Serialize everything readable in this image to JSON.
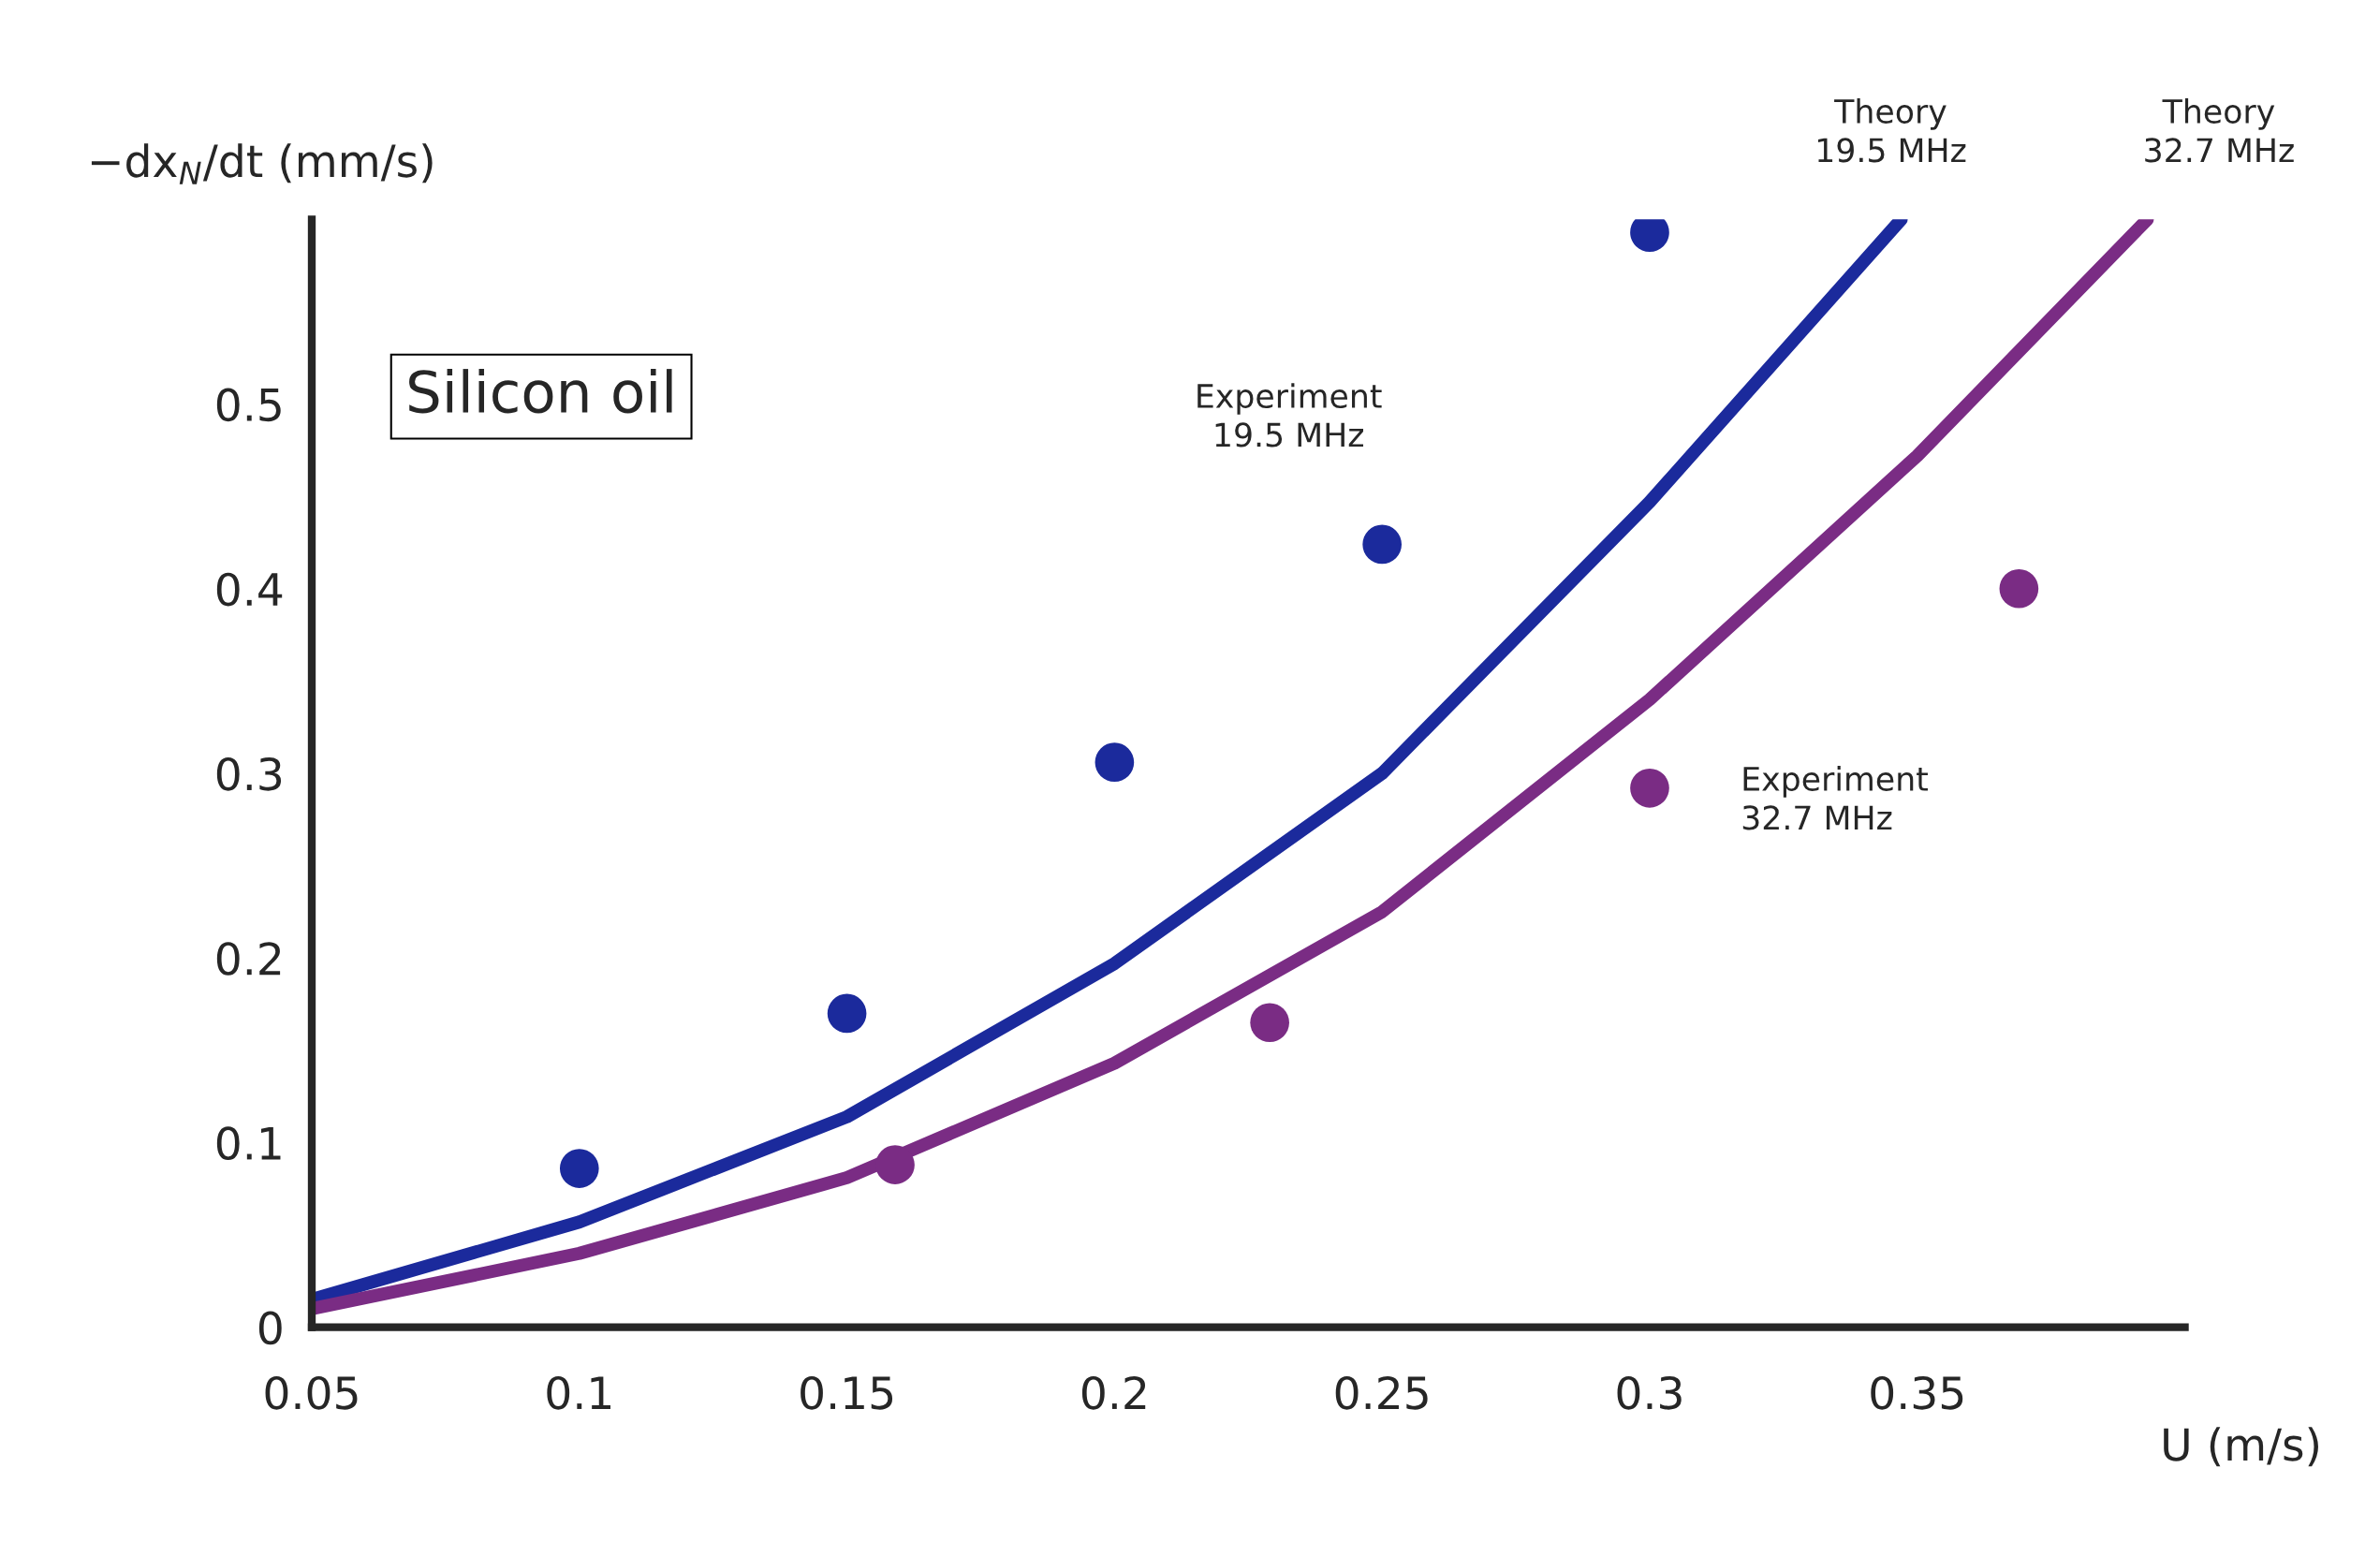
{
  "chart_data": {
    "type": "scatter",
    "xlabel": "U (m/s)",
    "ylabel": "−dx$_{N}$/dt (mm/s)",
    "xlim": [
      0.05,
      0.4
    ],
    "ylim": [
      0,
      0.6
    ],
    "xticks": [
      0.05,
      0.1,
      0.15,
      0.2,
      0.25,
      0.3,
      0.35
    ],
    "yticks": [
      0,
      0.1,
      0.2,
      0.3,
      0.4,
      0.5
    ],
    "grid": false,
    "legend": false,
    "annotations": [
      "Silicon oil"
    ],
    "series": [
      {
        "name": "Experiment 19.5 MHz",
        "marker": "circle",
        "color": "#1b2a9c",
        "x": [
          0.1,
          0.15,
          0.2,
          0.25,
          0.3
        ],
        "values": [
          0.086,
          0.17,
          0.306,
          0.424,
          0.593
        ]
      },
      {
        "name": "Experiment 32.7 MHz",
        "marker": "circle",
        "color": "#7a2c84",
        "x": [
          0.159,
          0.229,
          0.3,
          0.369
        ],
        "values": [
          0.088,
          0.165,
          0.292,
          0.4
        ]
      },
      {
        "name": "Theory 19.5 MHz",
        "type": "line",
        "color": "#1b2a9c",
        "x": [
          0.05,
          0.1,
          0.15,
          0.2,
          0.25,
          0.3,
          0.347
        ],
        "values": [
          0.015,
          0.057,
          0.114,
          0.197,
          0.3,
          0.447,
          0.6
        ]
      },
      {
        "name": "Theory 32.7 MHz",
        "type": "line",
        "color": "#7a2c84",
        "x": [
          0.05,
          0.1,
          0.15,
          0.2,
          0.25,
          0.3,
          0.35,
          0.393
        ],
        "values": [
          0.01,
          0.04,
          0.081,
          0.143,
          0.225,
          0.34,
          0.472,
          0.6
        ]
      }
    ]
  }
}
